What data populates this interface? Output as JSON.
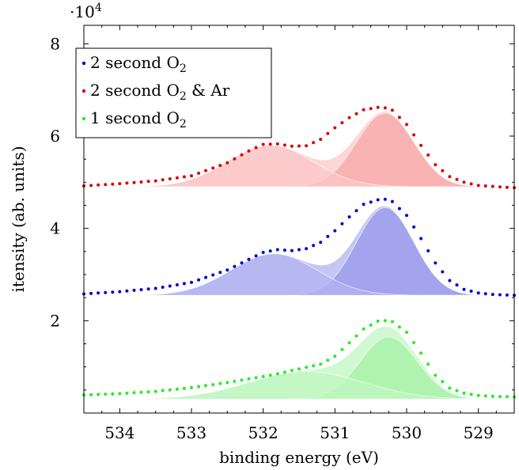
{
  "chart_data": {
    "type": "area",
    "x_label": "binding energy (eV)",
    "y_label": "itensity (ab. units)",
    "y_scale_label": "·10",
    "y_scale_exponent": "4",
    "x_reversed": true,
    "xlim": [
      528.5,
      534.5
    ],
    "ylim": [
      0,
      84000
    ],
    "x_ticks": [
      "534",
      "533",
      "532",
      "531",
      "530",
      "529"
    ],
    "y_ticks": [
      "2",
      "4",
      "6",
      "8"
    ],
    "grid": false,
    "legend_position": "top-left",
    "series": [
      {
        "name": "2 second O",
        "name_sub": "2",
        "name_suffix": "",
        "color": "#0000d6",
        "fill": "#b3b3f2",
        "fill_dark": "#9898ec",
        "baseline": 25500,
        "x": [
          534.5,
          534.0,
          533.5,
          533.0,
          532.5,
          532.2,
          532.0,
          531.8,
          531.6,
          531.4,
          531.2,
          531.0,
          530.8,
          530.6,
          530.4,
          530.3,
          530.2,
          530.0,
          529.8,
          529.6,
          529.4,
          529.2,
          529.0,
          528.8,
          528.5
        ],
        "y": [
          25800,
          26300,
          27000,
          28300,
          31000,
          33300,
          34800,
          35400,
          35200,
          35600,
          37000,
          39500,
          42500,
          45200,
          46200,
          46300,
          45800,
          42800,
          37800,
          32500,
          28700,
          26800,
          26000,
          25700,
          25500
        ],
        "components": [
          {
            "center": 530.3,
            "sigma": 0.4,
            "amplitude": 19000
          },
          {
            "center": 531.85,
            "sigma": 0.6,
            "amplitude": 9000
          }
        ]
      },
      {
        "name": "2 second O",
        "name_sub": "2",
        "name_suffix": " & Ar",
        "color": "#dd0000",
        "fill": "#fdc8c8",
        "fill_dark": "#f8a8a8",
        "baseline": 49000,
        "x": [
          534.5,
          534.0,
          533.5,
          533.0,
          532.5,
          532.2,
          532.0,
          531.8,
          531.6,
          531.4,
          531.2,
          531.0,
          530.8,
          530.6,
          530.4,
          530.3,
          530.2,
          530.0,
          529.8,
          529.6,
          529.4,
          529.2,
          529.0,
          528.8,
          528.5
        ],
        "y": [
          49200,
          49700,
          50300,
          51400,
          54200,
          56800,
          58200,
          58300,
          57800,
          57900,
          59300,
          61800,
          64000,
          65700,
          66200,
          66100,
          65600,
          62500,
          58000,
          53800,
          51200,
          50000,
          49300,
          49100,
          48800
        ],
        "components": [
          {
            "center": 530.3,
            "sigma": 0.4,
            "amplitude": 16000
          },
          {
            "center": 531.9,
            "sigma": 0.6,
            "amplitude": 9000
          }
        ]
      },
      {
        "name": "1 second O",
        "name_sub": "2",
        "name_suffix": "",
        "color": "#22ee22",
        "fill": "#c2f7c2",
        "fill_dark": "#a5f2a5",
        "baseline": 3000,
        "x": [
          534.5,
          534.0,
          533.5,
          533.0,
          532.5,
          532.2,
          532.0,
          531.8,
          531.6,
          531.4,
          531.2,
          531.0,
          530.8,
          530.6,
          530.4,
          530.3,
          530.2,
          530.0,
          529.8,
          529.6,
          529.4,
          529.2,
          529.0,
          528.8,
          528.5
        ],
        "y": [
          3900,
          4200,
          4700,
          5500,
          6600,
          7400,
          7900,
          8500,
          9200,
          9900,
          10600,
          12300,
          15200,
          18200,
          19900,
          20000,
          19800,
          17500,
          13000,
          8200,
          5400,
          4300,
          3800,
          3600,
          3500
        ],
        "components": [
          {
            "center": 530.25,
            "sigma": 0.4,
            "amplitude": 13500
          },
          {
            "center": 531.4,
            "sigma": 0.8,
            "amplitude": 6000
          }
        ]
      }
    ]
  }
}
